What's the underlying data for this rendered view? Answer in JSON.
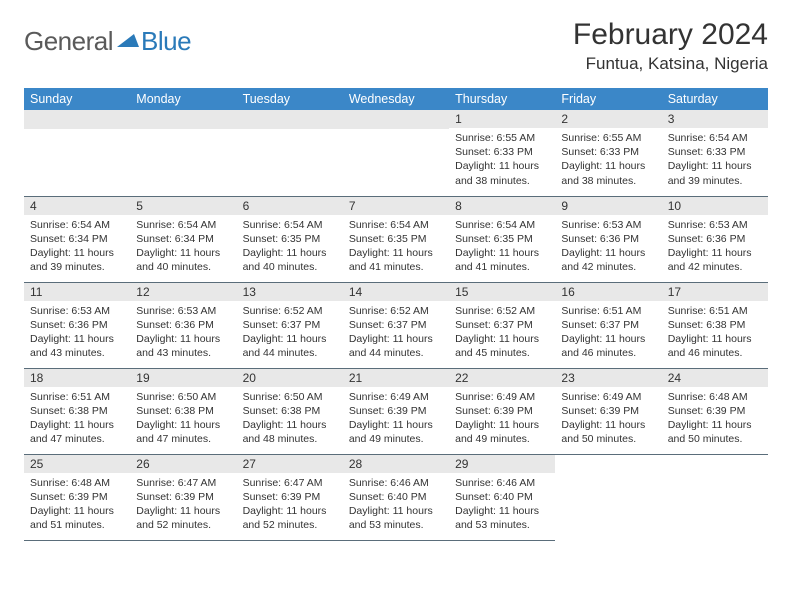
{
  "brand": {
    "main": "General",
    "sub": "Blue"
  },
  "title": "February 2024",
  "location": "Funtua, Katsina, Nigeria",
  "colors": {
    "header_bg": "#3b87c8",
    "header_text": "#ffffff",
    "daynum_bg": "#e8e8e8",
    "row_border": "#5a6d7a",
    "logo_main": "#5a5a5a",
    "logo_sub": "#2a7ab9",
    "text": "#333333",
    "background": "#ffffff"
  },
  "day_headers": [
    "Sunday",
    "Monday",
    "Tuesday",
    "Wednesday",
    "Thursday",
    "Friday",
    "Saturday"
  ],
  "first_weekday_index": 4,
  "days_in_month": 29,
  "labels": {
    "sunrise": "Sunrise:",
    "sunset": "Sunset:",
    "daylight": "Daylight:"
  },
  "days": {
    "1": {
      "sunrise": "6:55 AM",
      "sunset": "6:33 PM",
      "daylight": "11 hours and 38 minutes."
    },
    "2": {
      "sunrise": "6:55 AM",
      "sunset": "6:33 PM",
      "daylight": "11 hours and 38 minutes."
    },
    "3": {
      "sunrise": "6:54 AM",
      "sunset": "6:33 PM",
      "daylight": "11 hours and 39 minutes."
    },
    "4": {
      "sunrise": "6:54 AM",
      "sunset": "6:34 PM",
      "daylight": "11 hours and 39 minutes."
    },
    "5": {
      "sunrise": "6:54 AM",
      "sunset": "6:34 PM",
      "daylight": "11 hours and 40 minutes."
    },
    "6": {
      "sunrise": "6:54 AM",
      "sunset": "6:35 PM",
      "daylight": "11 hours and 40 minutes."
    },
    "7": {
      "sunrise": "6:54 AM",
      "sunset": "6:35 PM",
      "daylight": "11 hours and 41 minutes."
    },
    "8": {
      "sunrise": "6:54 AM",
      "sunset": "6:35 PM",
      "daylight": "11 hours and 41 minutes."
    },
    "9": {
      "sunrise": "6:53 AM",
      "sunset": "6:36 PM",
      "daylight": "11 hours and 42 minutes."
    },
    "10": {
      "sunrise": "6:53 AM",
      "sunset": "6:36 PM",
      "daylight": "11 hours and 42 minutes."
    },
    "11": {
      "sunrise": "6:53 AM",
      "sunset": "6:36 PM",
      "daylight": "11 hours and 43 minutes."
    },
    "12": {
      "sunrise": "6:53 AM",
      "sunset": "6:36 PM",
      "daylight": "11 hours and 43 minutes."
    },
    "13": {
      "sunrise": "6:52 AM",
      "sunset": "6:37 PM",
      "daylight": "11 hours and 44 minutes."
    },
    "14": {
      "sunrise": "6:52 AM",
      "sunset": "6:37 PM",
      "daylight": "11 hours and 44 minutes."
    },
    "15": {
      "sunrise": "6:52 AM",
      "sunset": "6:37 PM",
      "daylight": "11 hours and 45 minutes."
    },
    "16": {
      "sunrise": "6:51 AM",
      "sunset": "6:37 PM",
      "daylight": "11 hours and 46 minutes."
    },
    "17": {
      "sunrise": "6:51 AM",
      "sunset": "6:38 PM",
      "daylight": "11 hours and 46 minutes."
    },
    "18": {
      "sunrise": "6:51 AM",
      "sunset": "6:38 PM",
      "daylight": "11 hours and 47 minutes."
    },
    "19": {
      "sunrise": "6:50 AM",
      "sunset": "6:38 PM",
      "daylight": "11 hours and 47 minutes."
    },
    "20": {
      "sunrise": "6:50 AM",
      "sunset": "6:38 PM",
      "daylight": "11 hours and 48 minutes."
    },
    "21": {
      "sunrise": "6:49 AM",
      "sunset": "6:39 PM",
      "daylight": "11 hours and 49 minutes."
    },
    "22": {
      "sunrise": "6:49 AM",
      "sunset": "6:39 PM",
      "daylight": "11 hours and 49 minutes."
    },
    "23": {
      "sunrise": "6:49 AM",
      "sunset": "6:39 PM",
      "daylight": "11 hours and 50 minutes."
    },
    "24": {
      "sunrise": "6:48 AM",
      "sunset": "6:39 PM",
      "daylight": "11 hours and 50 minutes."
    },
    "25": {
      "sunrise": "6:48 AM",
      "sunset": "6:39 PM",
      "daylight": "11 hours and 51 minutes."
    },
    "26": {
      "sunrise": "6:47 AM",
      "sunset": "6:39 PM",
      "daylight": "11 hours and 52 minutes."
    },
    "27": {
      "sunrise": "6:47 AM",
      "sunset": "6:39 PM",
      "daylight": "11 hours and 52 minutes."
    },
    "28": {
      "sunrise": "6:46 AM",
      "sunset": "6:40 PM",
      "daylight": "11 hours and 53 minutes."
    },
    "29": {
      "sunrise": "6:46 AM",
      "sunset": "6:40 PM",
      "daylight": "11 hours and 53 minutes."
    }
  }
}
